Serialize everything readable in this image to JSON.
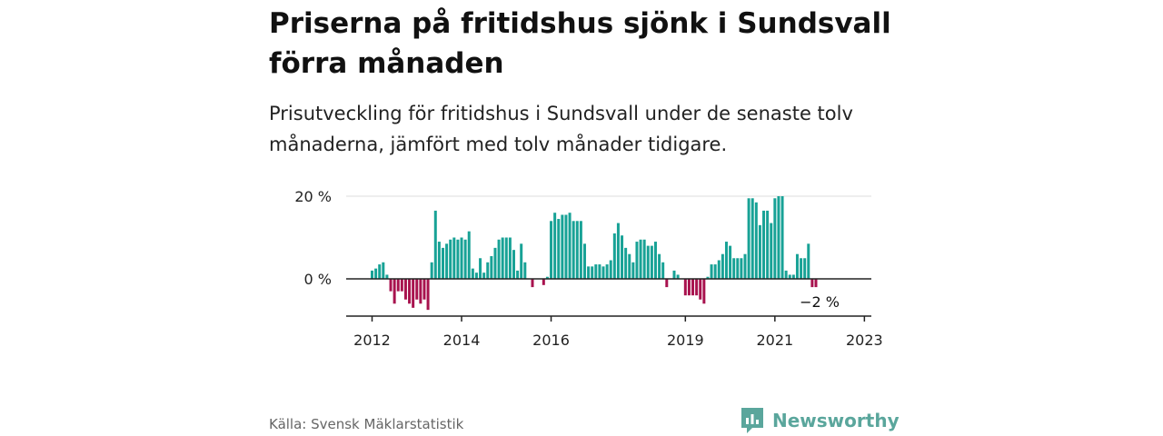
{
  "header": {
    "title": "Priserna på fritidshus sjönk i Sundsvall förra månaden",
    "subtitle": "Prisutveckling för fritidshus i Sundsvall under de senaste tolv månaderna, jämfört med tolv månader tidigare."
  },
  "footer": {
    "source": "Källa: Svensk Mäklarstatistik",
    "brand": "Newsworthy"
  },
  "colors": {
    "positive": "#18a296",
    "negative": "#a8124e",
    "brand": "#5aa69c"
  },
  "chart_data": {
    "type": "bar",
    "start_month": "2012-01",
    "values": [
      2,
      2.5,
      3.5,
      4,
      1,
      -3,
      -6,
      -3,
      -3,
      -5,
      -6,
      -7,
      -5,
      -6,
      -5,
      -7.5,
      4,
      16.5,
      9,
      7.5,
      8.5,
      9.5,
      10,
      9.5,
      10,
      9.5,
      11.5,
      2.5,
      1.5,
      5,
      1.5,
      4,
      5.5,
      7.5,
      9.5,
      10,
      10,
      10,
      7,
      2,
      8.5,
      4,
      0,
      -2,
      0,
      0,
      -1.5,
      0.5,
      14,
      16,
      14.5,
      15.5,
      15.5,
      16,
      14,
      14,
      14,
      8.5,
      3,
      3,
      3.5,
      3.5,
      3,
      3.5,
      4.5,
      11,
      13.5,
      10.5,
      7.5,
      6,
      4,
      9,
      9.5,
      9.5,
      8,
      8,
      9,
      6,
      4,
      -2,
      0,
      2,
      1,
      0,
      -4,
      -4,
      -4,
      -4,
      -5,
      -6,
      0.5,
      3.5,
      3.5,
      4.5,
      6,
      9,
      8,
      5,
      5,
      5,
      6,
      19.5,
      19.5,
      18.5,
      13,
      16.5,
      16.5,
      13.5,
      19.5,
      20,
      20,
      2,
      1,
      1,
      6,
      5,
      5,
      8.5,
      -2,
      -2
    ],
    "value_unit": "%",
    "x_ticks": [
      "2012",
      "2014",
      "2016",
      "2019",
      "2021",
      "2023"
    ],
    "y_ticks": [
      "20 %",
      "0 %"
    ],
    "y_tick_values": [
      20,
      0
    ],
    "ylim": [
      -8.5,
      20.5
    ],
    "annotation": "−2 %"
  }
}
